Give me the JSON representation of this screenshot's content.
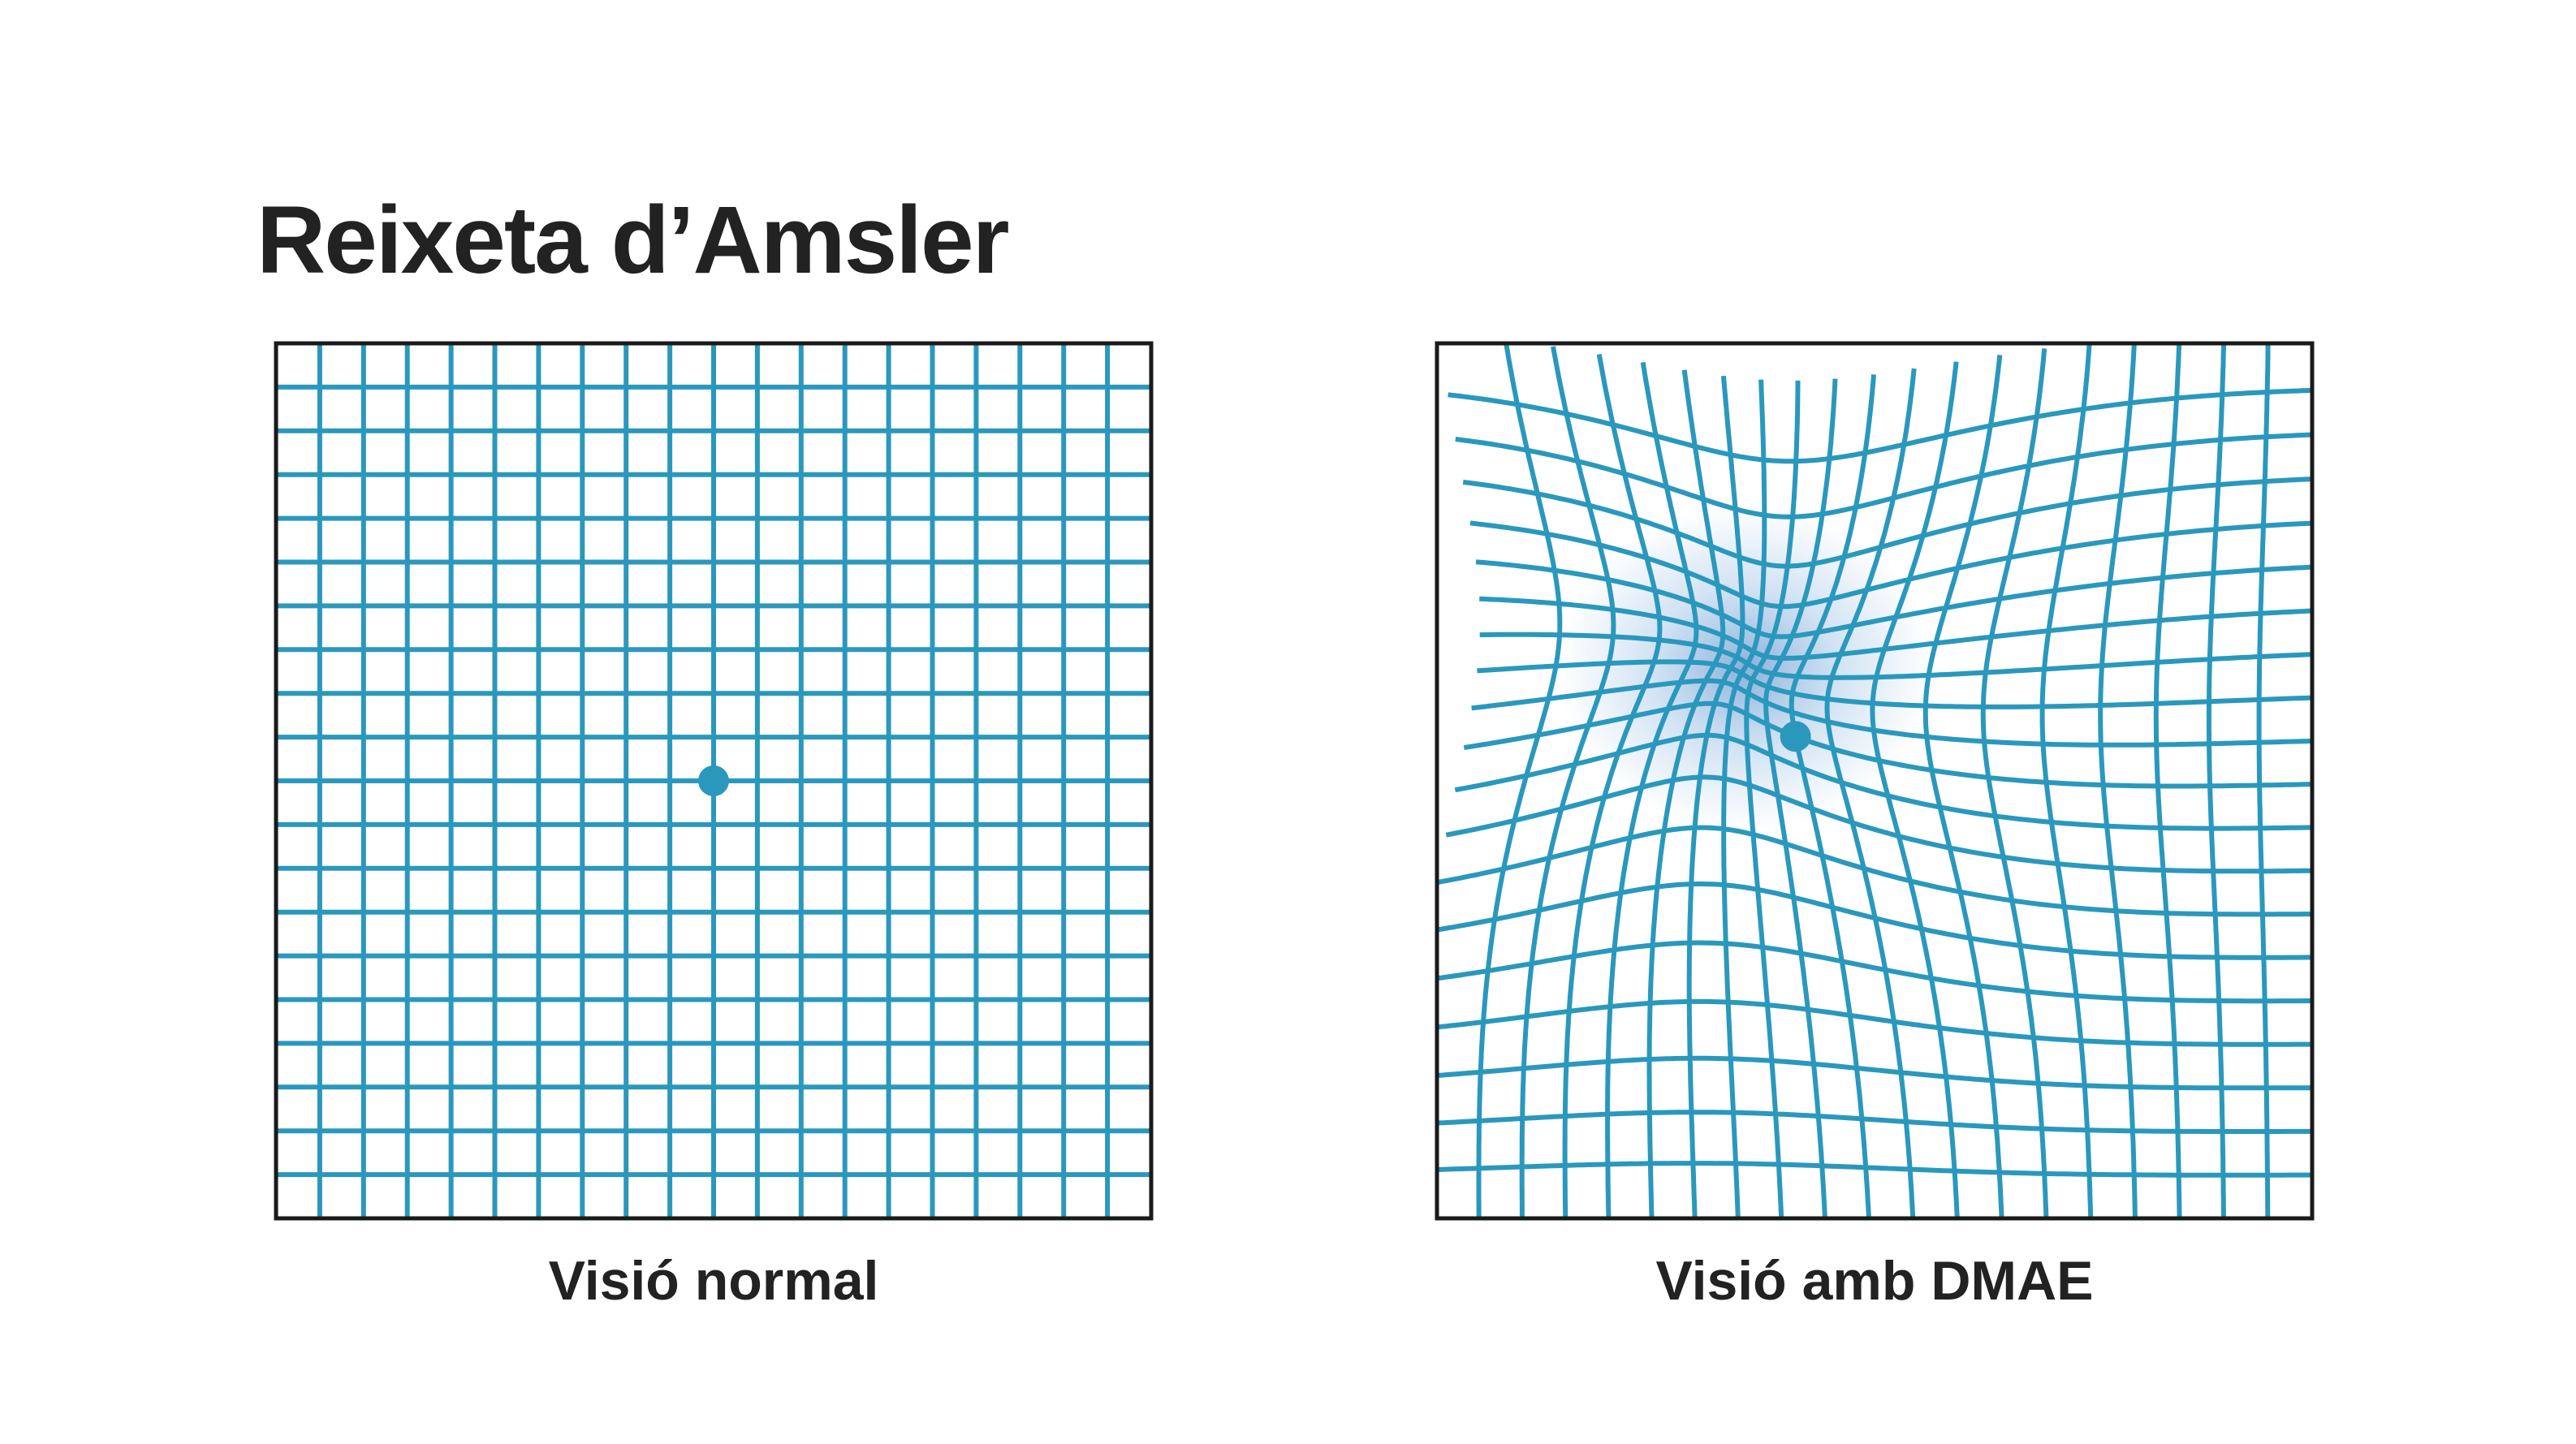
{
  "header": {
    "title": "Reixeta d’Amsler"
  },
  "panels": [
    {
      "caption": "Visió normal"
    },
    {
      "caption": "Visió amb DMAE"
    }
  ]
}
